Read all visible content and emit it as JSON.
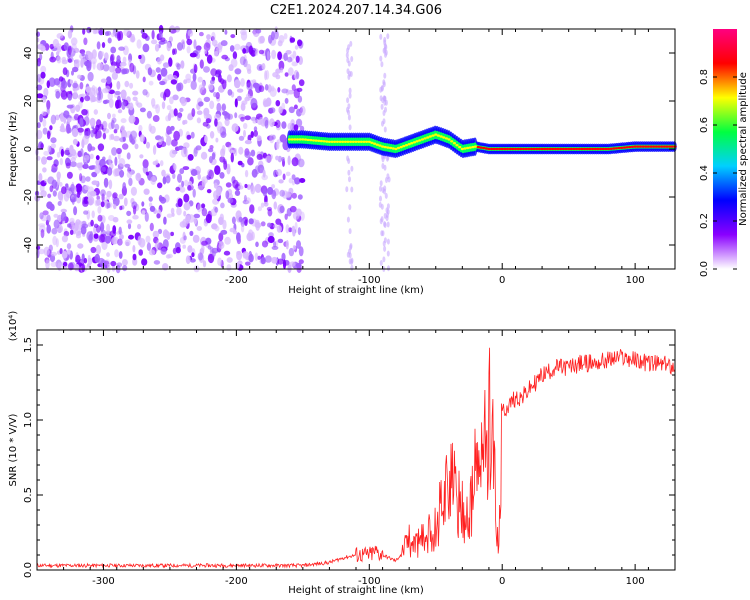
{
  "chart_data": [
    {
      "type": "heatmap",
      "title": "C2E1.2024.207.14.34.G06",
      "xlabel": "Height of straight line (km)",
      "ylabel": "Frequency (Hz)",
      "xlim": [
        -350,
        130
      ],
      "ylim": [
        -50,
        50
      ],
      "xticks": [
        -300,
        -200,
        -100,
        0,
        100
      ],
      "yticks": [
        -40,
        -20,
        0,
        20,
        40
      ],
      "colorbar": {
        "label": "Normalized spectral amplitude",
        "ticks": [
          "0.0",
          "0.2",
          "0.4",
          "0.6",
          "0.8"
        ],
        "range": [
          0,
          1
        ],
        "colors": [
          "#ffffff",
          "#8a00ff",
          "#0000ff",
          "#00d0ff",
          "#00ff40",
          "#ffff00",
          "#ff0000",
          "#ff0080"
        ]
      },
      "ridge": {
        "x": [
          -160,
          -150,
          -130,
          -110,
          -100,
          -90,
          -80,
          -70,
          -60,
          -50,
          -40,
          -30,
          -20,
          -10,
          0,
          20,
          50,
          80,
          100,
          130
        ],
        "y": [
          4,
          4,
          3,
          3,
          3,
          1,
          0,
          2,
          4,
          6,
          4,
          0,
          1,
          0,
          0,
          0,
          0,
          0,
          1,
          1
        ]
      },
      "noise_region_x": [
        -350,
        -150
      ]
    },
    {
      "type": "line",
      "title": "",
      "xlabel": "Height of straight line (km)",
      "ylabel": "SNR (10 * V/V)",
      "yscale_label": "(x10⁴)",
      "xlim": [
        -350,
        130
      ],
      "ylim": [
        0,
        1.6
      ],
      "xticks": [
        -300,
        -200,
        -100,
        0,
        100
      ],
      "yticks": [
        "0.0",
        "0.5",
        "1.0",
        "1.5"
      ],
      "series": [
        {
          "color": "#ff2020",
          "x": [
            -350,
            -300,
            -250,
            -200,
            -150,
            -130,
            -120,
            -110,
            -100,
            -95,
            -90,
            -80,
            -75,
            -70,
            -65,
            -60,
            -55,
            -50,
            -45,
            -40,
            -35,
            -30,
            -25,
            -20,
            -15,
            -10,
            -8,
            -5,
            -3,
            0,
            5,
            10,
            15,
            20,
            25,
            30,
            40,
            50,
            60,
            70,
            80,
            90,
            100,
            110,
            120,
            130
          ],
          "y": [
            0.03,
            0.03,
            0.03,
            0.03,
            0.03,
            0.05,
            0.08,
            0.1,
            0.1,
            0.12,
            0.1,
            0.06,
            0.12,
            0.2,
            0.22,
            0.25,
            0.3,
            0.35,
            0.6,
            0.8,
            0.6,
            0.5,
            0.4,
            0.8,
            0.9,
            1.2,
            1.5,
            0.5,
            0.1,
            1.05,
            1.1,
            1.15,
            1.15,
            1.2,
            1.25,
            1.3,
            1.35,
            1.35,
            1.38,
            1.38,
            1.4,
            1.42,
            1.4,
            1.38,
            1.37,
            1.36
          ]
        }
      ]
    }
  ]
}
